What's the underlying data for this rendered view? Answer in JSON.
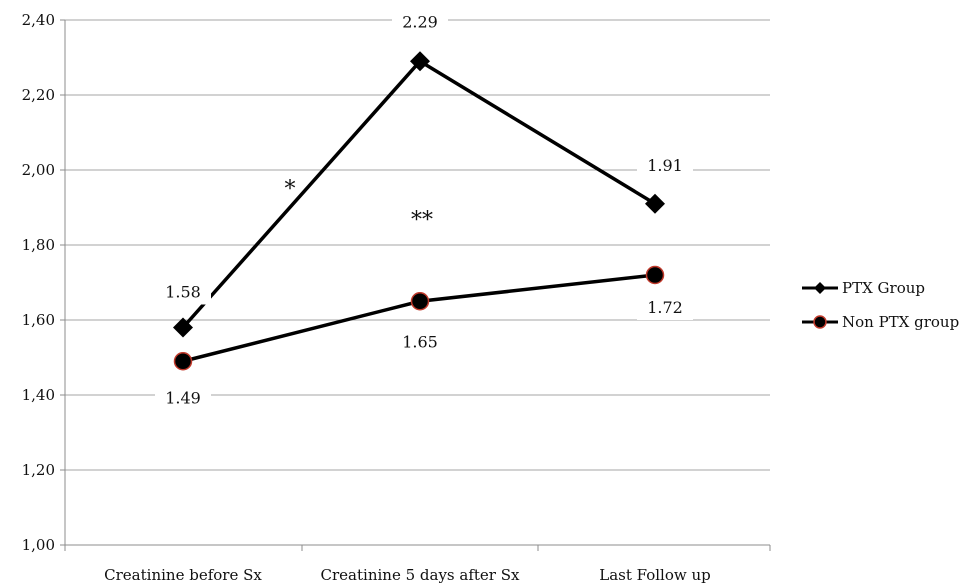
{
  "chart_data": {
    "type": "line",
    "categories": [
      "Creatinine before Sx",
      "Creatinine 5 days after Sx",
      "Last Follow up"
    ],
    "ylim": [
      1.0,
      2.4
    ],
    "yticks": [
      "1,00",
      "1,20",
      "1,40",
      "1,60",
      "1,80",
      "2,00",
      "2,20",
      "2,40"
    ],
    "ytick_values": [
      1.0,
      1.2,
      1.4,
      1.6,
      1.8,
      2.0,
      2.2,
      2.4
    ],
    "grid": true,
    "legend_position": "right",
    "series": [
      {
        "name": "PTX Group",
        "values": [
          1.58,
          2.29,
          1.91
        ],
        "labels": [
          "1.58",
          "2.29",
          "1.91"
        ],
        "marker": "diamond",
        "color": "#000000"
      },
      {
        "name": "Non PTX group",
        "values": [
          1.49,
          1.65,
          1.72
        ],
        "labels": [
          "1.49",
          "1.65",
          "1.72"
        ],
        "marker": "circle",
        "color": "#000000",
        "marker_edge_color": "#c0392b"
      }
    ],
    "annotations": [
      {
        "text": "*",
        "near": "PTX rise from baseline to day 5"
      },
      {
        "text": "**",
        "near": "between series at day 5"
      }
    ]
  }
}
